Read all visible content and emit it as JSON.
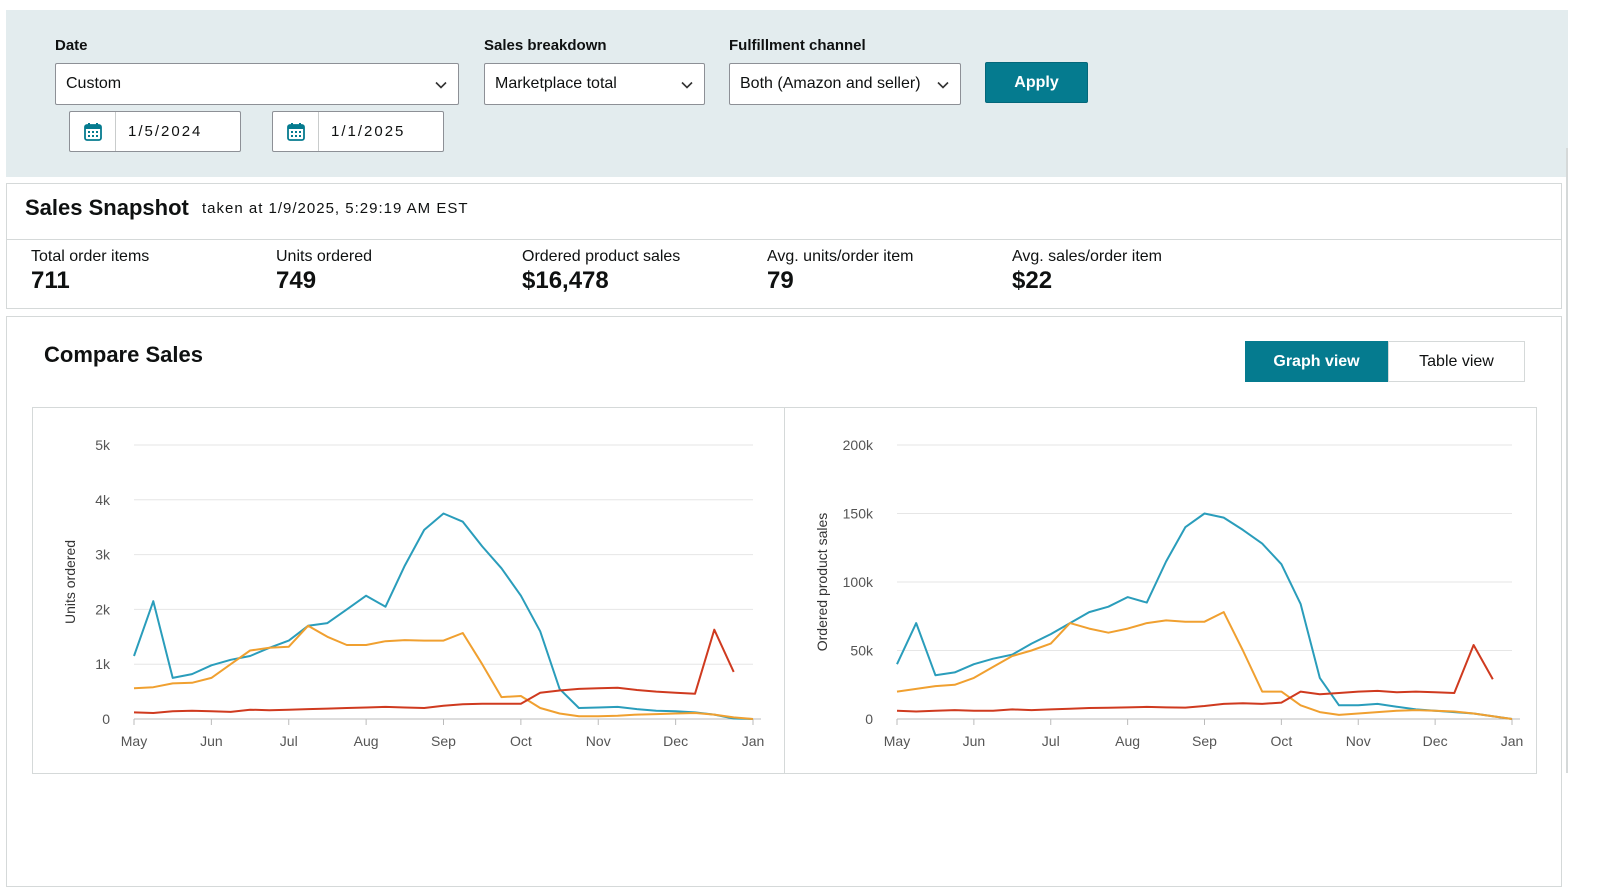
{
  "filters": {
    "date_label": "Date",
    "date_value": "Custom",
    "start_date": "1/5/2024",
    "end_date": "1/1/2025",
    "sales_breakdown_label": "Sales breakdown",
    "sales_breakdown_value": "Marketplace total",
    "fulfillment_label": "Fulfillment channel",
    "fulfillment_value": "Both (Amazon and seller)",
    "apply_label": "Apply"
  },
  "snapshot": {
    "title": "Sales Snapshot",
    "taken_at": "taken at 1/9/2025, 5:29:19 AM EST",
    "metrics": [
      {
        "label": "Total order items",
        "value": "711"
      },
      {
        "label": "Units ordered",
        "value": "749"
      },
      {
        "label": "Ordered product sales",
        "value": "$16,478"
      },
      {
        "label": "Avg. units/order item",
        "value": "79"
      },
      {
        "label": "Avg. sales/order item",
        "value": "$22"
      }
    ]
  },
  "compare": {
    "title": "Compare Sales",
    "graph_view_label": "Graph view",
    "table_view_label": "Table view"
  },
  "colors": {
    "accent": "#057b8f",
    "blue": "#2a9dbb",
    "orange": "#f0a030",
    "red": "#cf3a1f"
  },
  "chart_data": [
    {
      "type": "line",
      "title": "",
      "xlabel": "",
      "ylabel": "Units ordered",
      "x": [
        0,
        0.25,
        0.5,
        0.75,
        1,
        1.25,
        1.5,
        1.75,
        2,
        2.25,
        2.5,
        2.75,
        3,
        3.25,
        3.5,
        3.75,
        4,
        4.25,
        4.5,
        4.75,
        5,
        5.25,
        5.5,
        5.75,
        6,
        6.25,
        6.5,
        6.75,
        7,
        7.25,
        7.5,
        7.75,
        8
      ],
      "xticks": [
        "May",
        "Jun",
        "Jul",
        "Aug",
        "Sep",
        "Oct",
        "Nov",
        "Dec",
        "Jan"
      ],
      "yticks": [
        "0",
        "1k",
        "2k",
        "3k",
        "4k",
        "5k"
      ],
      "ylim": [
        0,
        5000
      ],
      "series": [
        {
          "name": "blue",
          "color": "#2a9dbb",
          "values": [
            1150,
            2150,
            750,
            820,
            980,
            1080,
            1150,
            1300,
            1430,
            1700,
            1750,
            2000,
            2250,
            2050,
            2800,
            3450,
            3750,
            3600,
            3150,
            2750,
            2250,
            1600,
            550,
            200,
            210,
            220,
            180,
            150,
            140,
            120,
            80,
            10,
            0
          ]
        },
        {
          "name": "orange",
          "color": "#f0a030",
          "values": [
            560,
            580,
            650,
            660,
            750,
            1000,
            1250,
            1300,
            1320,
            1700,
            1500,
            1350,
            1350,
            1420,
            1440,
            1430,
            1430,
            1570,
            1000,
            400,
            420,
            200,
            100,
            50,
            50,
            60,
            80,
            90,
            100,
            110,
            80,
            30,
            0
          ]
        },
        {
          "name": "red",
          "color": "#cf3a1f",
          "values": [
            120,
            110,
            140,
            150,
            140,
            130,
            170,
            160,
            170,
            180,
            190,
            200,
            210,
            220,
            210,
            200,
            240,
            270,
            280,
            280,
            280,
            480,
            520,
            550,
            560,
            570,
            530,
            500,
            480,
            460,
            1630,
            860,
            null
          ]
        }
      ]
    },
    {
      "type": "line",
      "title": "",
      "xlabel": "",
      "ylabel": "Ordered product sales",
      "x": [
        0,
        0.25,
        0.5,
        0.75,
        1,
        1.25,
        1.5,
        1.75,
        2,
        2.25,
        2.5,
        2.75,
        3,
        3.25,
        3.5,
        3.75,
        4,
        4.25,
        4.5,
        4.75,
        5,
        5.25,
        5.5,
        5.75,
        6,
        6.25,
        6.5,
        6.75,
        7,
        7.25,
        7.5,
        7.75,
        8
      ],
      "xticks": [
        "May",
        "Jun",
        "Jul",
        "Aug",
        "Sep",
        "Oct",
        "Nov",
        "Dec",
        "Jan"
      ],
      "yticks": [
        "0",
        "50k",
        "100k",
        "150k",
        "200k"
      ],
      "ylim": [
        0,
        200000
      ],
      "series": [
        {
          "name": "blue",
          "color": "#2a9dbb",
          "values": [
            40000,
            70000,
            32000,
            34000,
            40000,
            44000,
            47000,
            55000,
            62000,
            70000,
            78000,
            82000,
            89000,
            85000,
            115000,
            140000,
            150000,
            147000,
            138000,
            128000,
            113000,
            84000,
            30000,
            10000,
            10000,
            11000,
            9000,
            7000,
            6000,
            5000,
            4000,
            2000,
            0
          ]
        },
        {
          "name": "orange",
          "color": "#f0a030",
          "values": [
            20000,
            22000,
            24000,
            25000,
            30000,
            38000,
            46000,
            50000,
            55000,
            70000,
            66000,
            63000,
            66000,
            70000,
            72000,
            71000,
            71000,
            78000,
            50000,
            20000,
            20000,
            10000,
            5000,
            3000,
            4000,
            5000,
            6000,
            6500,
            6000,
            5500,
            4000,
            2000,
            0
          ]
        },
        {
          "name": "red",
          "color": "#cf3a1f",
          "values": [
            6000,
            5500,
            6000,
            6500,
            6000,
            6000,
            7000,
            6500,
            7000,
            7500,
            8000,
            8200,
            8500,
            8800,
            8500,
            8300,
            9500,
            11000,
            11500,
            11000,
            12000,
            20000,
            18000,
            19000,
            20000,
            20500,
            19500,
            20000,
            19500,
            19000,
            54000,
            29000,
            null
          ]
        }
      ]
    }
  ]
}
